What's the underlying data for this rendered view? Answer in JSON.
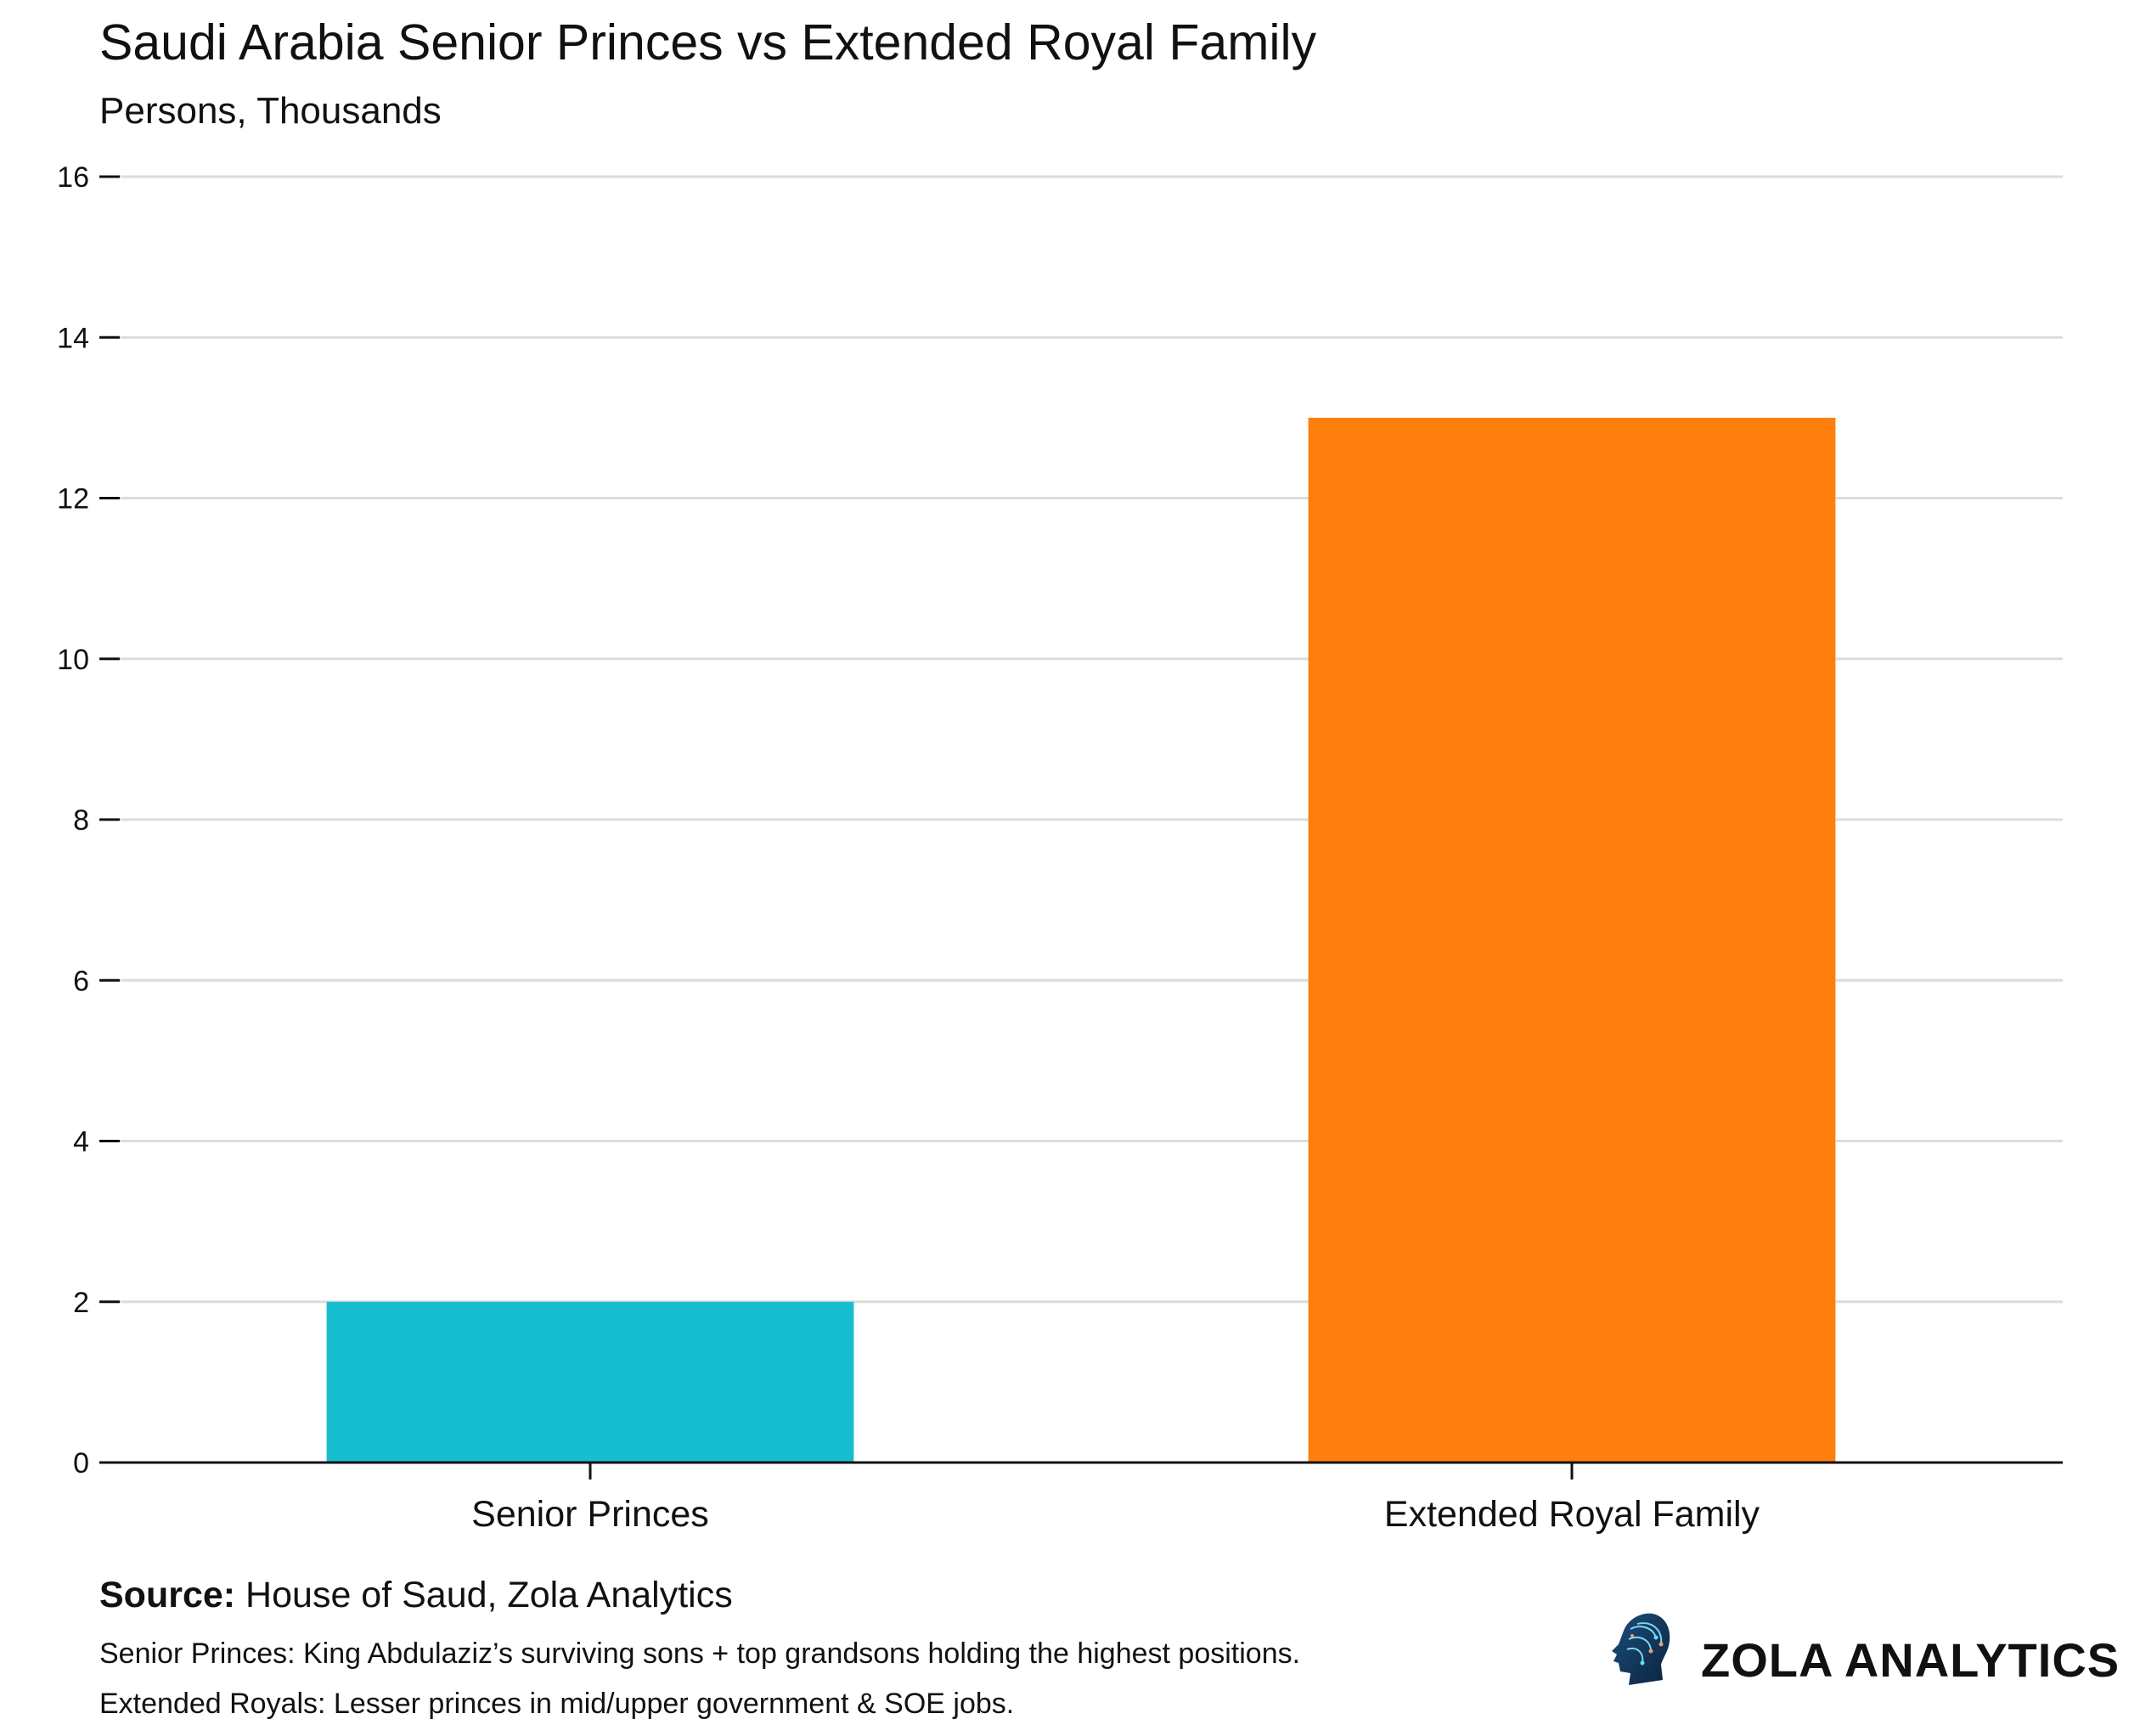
{
  "chart_data": {
    "type": "bar",
    "title": "Saudi Arabia Senior Princes vs Extended Royal Family",
    "subtitle": "Persons, Thousands",
    "categories": [
      "Senior Princes",
      "Extended Royal Family"
    ],
    "values": [
      2,
      13
    ],
    "colors": [
      "#17becf",
      "#ff7f0e"
    ],
    "xlabel": "",
    "ylabel": "",
    "ylim": [
      0,
      16
    ],
    "yticks": [
      "0",
      "2",
      "4",
      "6",
      "8",
      "10",
      "12",
      "14",
      "16"
    ],
    "grid": true,
    "legend": "none"
  },
  "footer": {
    "source_label": "Source:",
    "source_text": " House of Saud, Zola Analytics",
    "notes": [
      "Senior Princes: King Abdulaziz’s surviving sons + top grandsons holding the highest positions.",
      "Extended Royals: Lesser princes in mid/upper government & SOE jobs."
    ]
  },
  "logo": {
    "text": "ZOLA ANALYTICS",
    "icon": "circuit-head-icon"
  }
}
